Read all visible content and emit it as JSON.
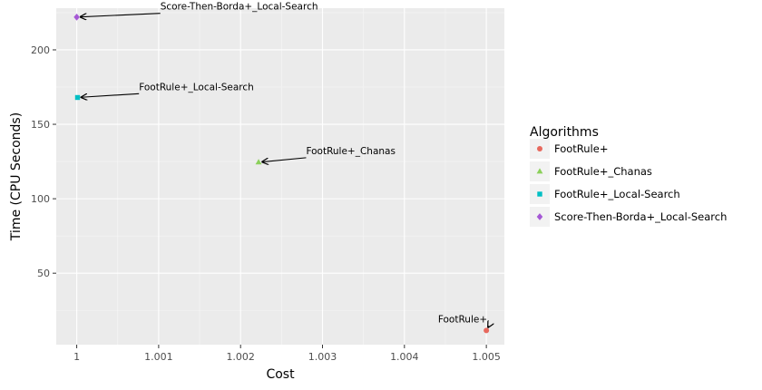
{
  "chart_data": {
    "type": "scatter",
    "xlabel": "Cost",
    "ylabel": "Time (CPU Seconds)",
    "xlim": [
      0.99975,
      1.00522
    ],
    "ylim": [
      2,
      228
    ],
    "x_ticks": [
      1,
      1.001,
      1.002,
      1.003,
      1.004,
      1.005
    ],
    "x_tick_labels": [
      "1",
      "1.001",
      "1.002",
      "1.003",
      "1.004",
      "1.005"
    ],
    "y_ticks": [
      50,
      100,
      150,
      200
    ],
    "y_tick_labels": [
      "50",
      "100",
      "150",
      "200"
    ],
    "grid": true,
    "legend": {
      "title": "Algorithms",
      "placement": "right"
    },
    "series": [
      {
        "name": "FootRule+",
        "color": "#E7685D",
        "shape": "circle",
        "x": 1.005,
        "y": 11.5,
        "annotation": "FootRule+",
        "annotation_x": 1.00441,
        "annotation_y": 17
      },
      {
        "name": "FootRule+_Chanas",
        "color": "#8BD05A",
        "shape": "triangle",
        "x": 1.00222,
        "y": 124.5,
        "annotation": "FootRule+_Chanas",
        "annotation_x": 1.0028,
        "annotation_y": 130
      },
      {
        "name": "FootRule+_Local-Search",
        "color": "#00BFC4",
        "shape": "square",
        "x": 1.00001,
        "y": 168,
        "annotation": "FootRule+_Local-Search",
        "annotation_x": 1.00076,
        "annotation_y": 173
      },
      {
        "name": "Score-Then-Borda+_Local-Search",
        "color": "#A558D5",
        "shape": "diamond",
        "x": 1.0,
        "y": 222,
        "annotation": "Score-Then-Borda+_Local-Search",
        "annotation_x": 1.00102,
        "annotation_y": 227
      }
    ]
  }
}
